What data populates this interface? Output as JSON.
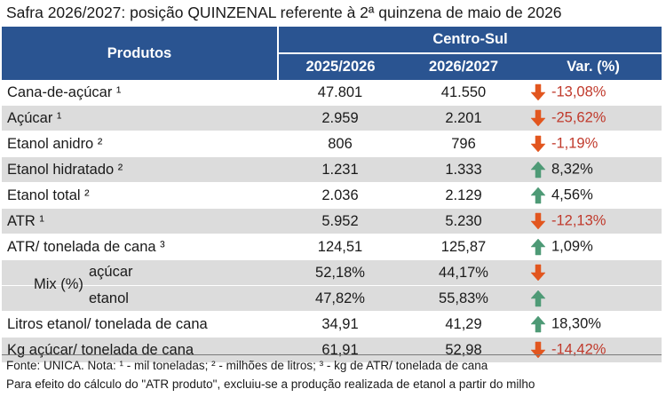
{
  "title": "Safra 2026/2027: posição QUINZENAL referente à 2ª quinzena de maio de 2026",
  "header": {
    "produtos": "Produtos",
    "region": "Centro-Sul",
    "col1": "2025/2026",
    "col2": "2026/2027",
    "col3": "Var. (%)"
  },
  "rows": [
    {
      "label": "Cana-de-açúcar ¹",
      "v1": "47.801",
      "v2": "41.550",
      "var": "-13,08%",
      "dir": "down"
    },
    {
      "label": "Açúcar ¹",
      "v1": "2.959",
      "v2": "2.201",
      "var": "-25,62%",
      "dir": "down"
    },
    {
      "label": "Etanol anidro ²",
      "v1": "806",
      "v2": "796",
      "var": "-1,19%",
      "dir": "down"
    },
    {
      "label": "Etanol hidratado ²",
      "v1": "1.231",
      "v2": "1.333",
      "var": "8,32%",
      "dir": "up"
    },
    {
      "label": "Etanol total ²",
      "v1": "2.036",
      "v2": "2.129",
      "var": "4,56%",
      "dir": "up"
    },
    {
      "label": "ATR ¹",
      "v1": "5.952",
      "v2": "5.230",
      "var": "-12,13%",
      "dir": "down"
    },
    {
      "label": "ATR/ tonelada de cana ³",
      "v1": "124,51",
      "v2": "125,87",
      "var": "1,09%",
      "dir": "up"
    }
  ],
  "mix": {
    "label": "Mix (%)",
    "acucar": {
      "label": "açúcar",
      "v1": "52,18%",
      "v2": "44,17%",
      "dir": "down"
    },
    "etanol": {
      "label": "etanol",
      "v1": "47,82%",
      "v2": "55,83%",
      "dir": "up"
    }
  },
  "rows2": [
    {
      "label": "Litros etanol/ tonelada de cana",
      "v1": "34,91",
      "v2": "41,29",
      "var": "18,30%",
      "dir": "up"
    },
    {
      "label": "Kg açúcar/ tonelada de cana",
      "v1": "61,91",
      "v2": "52,98",
      "var": "-14,42%",
      "dir": "down"
    }
  ],
  "footnote1": "Fonte: UNICA. Nota: ¹ - mil toneladas; ² - milhões de litros; ³ - kg de ATR/ tonelada de cana",
  "footnote2": "Para efeito do cálculo do \"ATR produto\", excluiu-se a produção realizada de etanol a partir do milho",
  "colors": {
    "header": "#2a5491",
    "down": "#e2561f",
    "up": "#4e9a76",
    "neg_text": "#c0392b",
    "band": "#dcdcdc"
  },
  "icons": {
    "down": "arrow-down-icon",
    "up": "arrow-up-icon"
  }
}
